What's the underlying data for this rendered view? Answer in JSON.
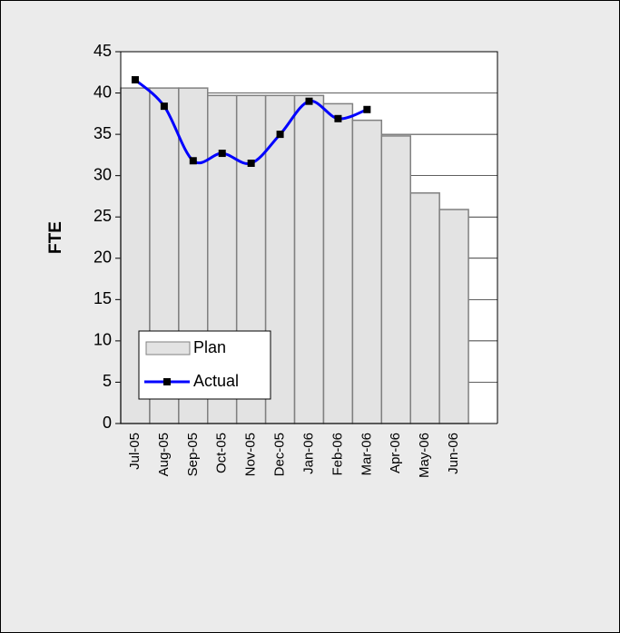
{
  "chart_data": {
    "type": "bar",
    "y_label": "FTE",
    "categories": [
      "Jul-05",
      "Aug-05",
      "Sep-05",
      "Oct-05",
      "Nov-05",
      "Dec-05",
      "Jan-06",
      "Feb-06",
      "Mar-06",
      "Apr-06",
      "May-06",
      "Jun-06",
      null
    ],
    "series": [
      {
        "name": "Plan",
        "type": "bar",
        "color": "#e3e3e3",
        "values": [
          40.6,
          40.6,
          40.6,
          39.7,
          39.7,
          39.7,
          39.7,
          38.7,
          36.7,
          34.8,
          27.9,
          25.9,
          null
        ]
      },
      {
        "name": "Actual",
        "type": "line",
        "color": "#0000ff",
        "values": [
          41.6,
          38.4,
          31.8,
          32.7,
          31.5,
          35,
          39,
          36.9,
          38,
          null,
          null,
          null,
          null
        ]
      }
    ],
    "ylim": [
      0,
      45
    ],
    "yticks": [
      0,
      5,
      10,
      15,
      20,
      25,
      30,
      35,
      40,
      45
    ],
    "grid": true,
    "legend": "lower-left"
  }
}
